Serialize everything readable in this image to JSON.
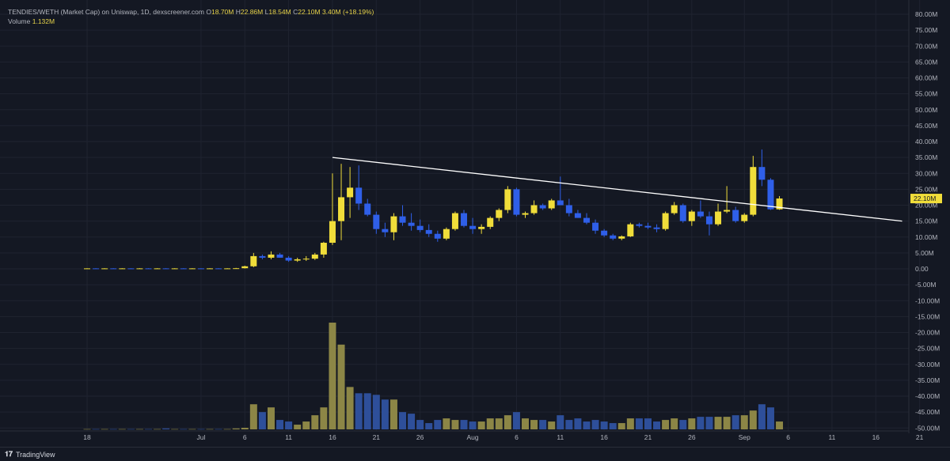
{
  "header": {
    "symbol": "TENDIES/WETH (Market Cap) on Uniswap, 1D, dexscreener.com",
    "o_label": "O",
    "o_value": "18.70M",
    "h_label": "H",
    "h_value": "22.86M",
    "l_label": "L",
    "l_value": "18.54M",
    "c_label": "C",
    "c_value": "22.10M",
    "change": "3.40M (+18.19%)",
    "volume_label": "Volume",
    "volume_value": "1.132M"
  },
  "footer": {
    "brand": "TradingView",
    "logo_icon": "tradingview-logo-icon"
  },
  "colors": {
    "up": "#f0dd3a",
    "down": "#2f5fe8",
    "vol_up": "#8c8646",
    "vol_down": "#2e4f9a",
    "bg": "#141823",
    "trend": "#ffffff"
  },
  "chart_data": {
    "type": "candlestick",
    "y_axis": {
      "min": -50,
      "max": 80,
      "step": 5,
      "unit": "M",
      "ticks": [
        "80.00M",
        "75.00M",
        "70.00M",
        "65.00M",
        "60.00M",
        "55.00M",
        "50.00M",
        "45.00M",
        "40.00M",
        "35.00M",
        "30.00M",
        "25.00M",
        "20.00M",
        "15.00M",
        "10.00M",
        "5.00M",
        "0.00",
        "-5.00M",
        "-10.00M",
        "-15.00M",
        "-20.00M",
        "-25.00M",
        "-30.00M",
        "-35.00M",
        "-40.00M",
        "-45.00M",
        "-50.00M"
      ],
      "last_price_label": "22.10M"
    },
    "x_axis": {
      "labels": [
        {
          "label": "18",
          "index": 0
        },
        {
          "label": "Jul",
          "index": 13
        },
        {
          "label": "6",
          "index": 18
        },
        {
          "label": "11",
          "index": 23
        },
        {
          "label": "16",
          "index": 28
        },
        {
          "label": "21",
          "index": 33
        },
        {
          "label": "26",
          "index": 38
        },
        {
          "label": "Aug",
          "index": 44
        },
        {
          "label": "6",
          "index": 49
        },
        {
          "label": "11",
          "index": 54
        },
        {
          "label": "16",
          "index": 59
        },
        {
          "label": "21",
          "index": 64
        },
        {
          "label": "26",
          "index": 69
        },
        {
          "label": "Sep",
          "index": 75
        },
        {
          "label": "6",
          "index": 80
        },
        {
          "label": "11",
          "index": 85
        },
        {
          "label": "16",
          "index": 90
        },
        {
          "label": "21",
          "index": 95
        }
      ]
    },
    "candles": [
      {
        "o": 0.1,
        "h": 0.2,
        "l": 0.0,
        "c": 0.15,
        "v": 0.1
      },
      {
        "o": 0.15,
        "h": 0.2,
        "l": 0.0,
        "c": 0.1,
        "v": 0.1
      },
      {
        "o": 0.1,
        "h": 0.2,
        "l": 0.0,
        "c": 0.15,
        "v": 0.1
      },
      {
        "o": 0.15,
        "h": 0.2,
        "l": 0.0,
        "c": 0.1,
        "v": 0.1
      },
      {
        "o": 0.1,
        "h": 0.2,
        "l": 0.0,
        "c": 0.15,
        "v": 0.1
      },
      {
        "o": 0.15,
        "h": 0.2,
        "l": 0.0,
        "c": 0.12,
        "v": 0.1
      },
      {
        "o": 0.12,
        "h": 0.2,
        "l": 0.0,
        "c": 0.15,
        "v": 0.1
      },
      {
        "o": 0.15,
        "h": 0.2,
        "l": 0.0,
        "c": 0.12,
        "v": 0.1
      },
      {
        "o": 0.12,
        "h": 0.2,
        "l": 0.0,
        "c": 0.15,
        "v": 0.1
      },
      {
        "o": 0.15,
        "h": 0.2,
        "l": 0.0,
        "c": 0.12,
        "v": 0.3
      },
      {
        "o": 0.12,
        "h": 0.2,
        "l": 0.0,
        "c": 0.15,
        "v": 0.1
      },
      {
        "o": 0.15,
        "h": 0.2,
        "l": 0.0,
        "c": 0.12,
        "v": 0.1
      },
      {
        "o": 0.12,
        "h": 0.2,
        "l": 0.0,
        "c": 0.15,
        "v": 0.1
      },
      {
        "o": 0.15,
        "h": 0.2,
        "l": 0.0,
        "c": 0.12,
        "v": 0.1
      },
      {
        "o": 0.12,
        "h": 0.2,
        "l": 0.0,
        "c": 0.15,
        "v": 0.1
      },
      {
        "o": 0.15,
        "h": 0.2,
        "l": 0.0,
        "c": 0.12,
        "v": 0.1
      },
      {
        "o": 0.12,
        "h": 0.2,
        "l": 0.0,
        "c": 0.15,
        "v": 0.1
      },
      {
        "o": 0.15,
        "h": 0.3,
        "l": 0.0,
        "c": 0.2,
        "v": 0.3
      },
      {
        "o": 0.2,
        "h": 1.0,
        "l": 0.1,
        "c": 0.8,
        "v": 0.5
      },
      {
        "o": 0.8,
        "h": 5.0,
        "l": 0.5,
        "c": 4.0,
        "v": 8.0
      },
      {
        "o": 4.0,
        "h": 4.5,
        "l": 3.0,
        "c": 3.5,
        "v": 5.5
      },
      {
        "o": 3.5,
        "h": 5.5,
        "l": 3.0,
        "c": 4.5,
        "v": 7.0
      },
      {
        "o": 4.5,
        "h": 5.0,
        "l": 3.5,
        "c": 3.5,
        "v": 3.0
      },
      {
        "o": 3.5,
        "h": 4.0,
        "l": 2.2,
        "c": 2.6,
        "v": 2.5
      },
      {
        "o": 2.6,
        "h": 3.5,
        "l": 2.2,
        "c": 3.0,
        "v": 1.5
      },
      {
        "o": 3.0,
        "h": 4.0,
        "l": 2.5,
        "c": 3.2,
        "v": 2.5
      },
      {
        "o": 3.2,
        "h": 5.0,
        "l": 2.8,
        "c": 4.5,
        "v": 4.5
      },
      {
        "o": 4.5,
        "h": 8.5,
        "l": 3.5,
        "c": 8.2,
        "v": 7.0
      },
      {
        "o": 8.2,
        "h": 30.0,
        "l": 7.5,
        "c": 15.0,
        "v": 34.0
      },
      {
        "o": 15.0,
        "h": 33.0,
        "l": 9.0,
        "c": 22.5,
        "v": 27.0
      },
      {
        "o": 22.5,
        "h": 32.0,
        "l": 16.0,
        "c": 25.5,
        "v": 13.5
      },
      {
        "o": 25.5,
        "h": 32.5,
        "l": 18.5,
        "c": 20.5,
        "v": 11.5
      },
      {
        "o": 20.5,
        "h": 22.0,
        "l": 16.5,
        "c": 17.0,
        "v": 11.5
      },
      {
        "o": 17.0,
        "h": 18.0,
        "l": 11.0,
        "c": 12.5,
        "v": 11.0
      },
      {
        "o": 12.5,
        "h": 14.5,
        "l": 10.0,
        "c": 11.5,
        "v": 9.5
      },
      {
        "o": 11.5,
        "h": 17.5,
        "l": 9.0,
        "c": 16.5,
        "v": 9.5
      },
      {
        "o": 16.5,
        "h": 20.0,
        "l": 13.5,
        "c": 14.5,
        "v": 5.5
      },
      {
        "o": 14.5,
        "h": 17.5,
        "l": 12.0,
        "c": 13.5,
        "v": 5.0
      },
      {
        "o": 13.5,
        "h": 15.5,
        "l": 11.5,
        "c": 12.2,
        "v": 3.0
      },
      {
        "o": 12.2,
        "h": 14.0,
        "l": 10.0,
        "c": 11.0,
        "v": 2.0
      },
      {
        "o": 11.0,
        "h": 12.0,
        "l": 8.5,
        "c": 9.5,
        "v": 3.0
      },
      {
        "o": 9.5,
        "h": 13.0,
        "l": 9.0,
        "c": 12.5,
        "v": 3.5
      },
      {
        "o": 12.5,
        "h": 18.0,
        "l": 12.0,
        "c": 17.5,
        "v": 3.0
      },
      {
        "o": 17.5,
        "h": 18.5,
        "l": 13.0,
        "c": 13.5,
        "v": 3.0
      },
      {
        "o": 13.5,
        "h": 16.0,
        "l": 11.0,
        "c": 12.5,
        "v": 2.5
      },
      {
        "o": 12.5,
        "h": 14.0,
        "l": 11.0,
        "c": 13.2,
        "v": 2.5
      },
      {
        "o": 13.2,
        "h": 16.5,
        "l": 12.5,
        "c": 16.0,
        "v": 3.5
      },
      {
        "o": 16.0,
        "h": 19.0,
        "l": 15.0,
        "c": 18.5,
        "v": 3.5
      },
      {
        "o": 18.5,
        "h": 26.0,
        "l": 17.5,
        "c": 25.0,
        "v": 4.5
      },
      {
        "o": 25.0,
        "h": 25.5,
        "l": 16.5,
        "c": 17.0,
        "v": 5.5
      },
      {
        "o": 17.0,
        "h": 18.0,
        "l": 16.0,
        "c": 17.5,
        "v": 3.5
      },
      {
        "o": 17.5,
        "h": 21.5,
        "l": 17.0,
        "c": 20.0,
        "v": 3.0
      },
      {
        "o": 20.0,
        "h": 20.5,
        "l": 18.5,
        "c": 19.0,
        "v": 3.0
      },
      {
        "o": 19.0,
        "h": 22.0,
        "l": 18.5,
        "c": 21.5,
        "v": 2.5
      },
      {
        "o": 21.5,
        "h": 29.0,
        "l": 20.0,
        "c": 20.0,
        "v": 4.5
      },
      {
        "o": 20.0,
        "h": 22.0,
        "l": 16.5,
        "c": 17.5,
        "v": 3.0
      },
      {
        "o": 17.5,
        "h": 18.5,
        "l": 16.0,
        "c": 16.0,
        "v": 3.5
      },
      {
        "o": 16.0,
        "h": 17.5,
        "l": 14.0,
        "c": 14.5,
        "v": 2.5
      },
      {
        "o": 14.5,
        "h": 15.5,
        "l": 11.0,
        "c": 12.0,
        "v": 3.0
      },
      {
        "o": 12.0,
        "h": 12.5,
        "l": 10.0,
        "c": 10.5,
        "v": 2.5
      },
      {
        "o": 10.5,
        "h": 11.0,
        "l": 9.0,
        "c": 9.5,
        "v": 2.0
      },
      {
        "o": 9.5,
        "h": 10.5,
        "l": 9.0,
        "c": 10.2,
        "v": 2.0
      },
      {
        "o": 10.2,
        "h": 14.5,
        "l": 10.0,
        "c": 14.0,
        "v": 3.5
      },
      {
        "o": 14.0,
        "h": 14.5,
        "l": 13.0,
        "c": 13.5,
        "v": 3.5
      },
      {
        "o": 13.5,
        "h": 14.5,
        "l": 12.5,
        "c": 13.0,
        "v": 3.5
      },
      {
        "o": 13.0,
        "h": 14.0,
        "l": 11.5,
        "c": 12.5,
        "v": 2.5
      },
      {
        "o": 12.5,
        "h": 18.0,
        "l": 12.0,
        "c": 17.5,
        "v": 3.0
      },
      {
        "o": 17.5,
        "h": 21.0,
        "l": 17.0,
        "c": 20.0,
        "v": 3.5
      },
      {
        "o": 20.0,
        "h": 20.5,
        "l": 14.5,
        "c": 15.0,
        "v": 3.0
      },
      {
        "o": 15.0,
        "h": 18.5,
        "l": 13.5,
        "c": 18.0,
        "v": 3.5
      },
      {
        "o": 18.0,
        "h": 21.5,
        "l": 16.0,
        "c": 16.5,
        "v": 4.0
      },
      {
        "o": 16.5,
        "h": 18.0,
        "l": 10.5,
        "c": 14.0,
        "v": 4.0
      },
      {
        "o": 14.0,
        "h": 20.5,
        "l": 13.5,
        "c": 18.0,
        "v": 4.0
      },
      {
        "o": 18.0,
        "h": 26.0,
        "l": 17.5,
        "c": 18.5,
        "v": 4.0
      },
      {
        "o": 18.5,
        "h": 19.5,
        "l": 14.5,
        "c": 15.0,
        "v": 4.5
      },
      {
        "o": 15.0,
        "h": 17.5,
        "l": 14.5,
        "c": 17.0,
        "v": 4.5
      },
      {
        "o": 17.0,
        "h": 35.5,
        "l": 16.5,
        "c": 32.0,
        "v": 6.0
      },
      {
        "o": 32.0,
        "h": 37.5,
        "l": 26.0,
        "c": 28.0,
        "v": 8.0
      },
      {
        "o": 28.0,
        "h": 28.5,
        "l": 18.5,
        "c": 18.7,
        "v": 7.0
      },
      {
        "o": 18.7,
        "h": 22.86,
        "l": 18.54,
        "c": 22.1,
        "v": 2.5
      }
    ],
    "trendline": [
      {
        "index": 28,
        "value": 35.0
      },
      {
        "index": 93,
        "value": 15.0
      }
    ]
  }
}
